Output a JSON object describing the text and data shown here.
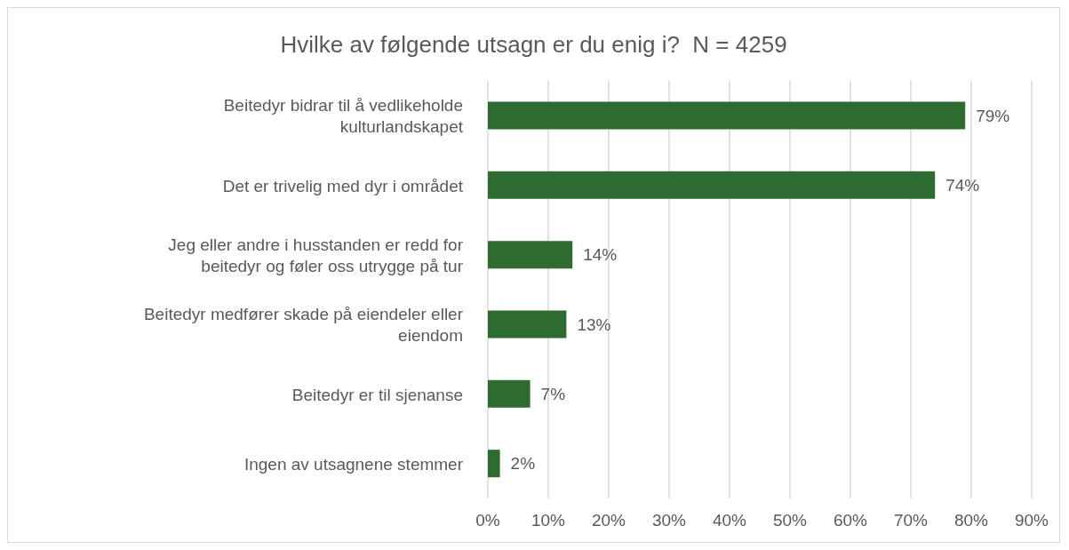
{
  "chart_data": {
    "type": "bar",
    "orientation": "horizontal",
    "title": "Hvilke av følgende utsagn er du enig i?  N = 4259",
    "categories": [
      "Beitedyr bidrar til å vedlikeholde kulturlandskapet",
      "Det er trivelig med dyr i området",
      "Jeg eller andre i husstanden er redd for beitedyr og føler oss utrygge på tur",
      "Beitedyr medfører skade på eiendeler eller eiendom",
      "Beitedyr er til sjenanse",
      "Ingen av utsagnene stemmer"
    ],
    "values": [
      79,
      74,
      14,
      13,
      7,
      2
    ],
    "value_labels": [
      "79%",
      "74%",
      "14%",
      "13%",
      "7%",
      "2%"
    ],
    "color": "#2e6b30",
    "xlim": [
      0,
      90
    ],
    "xticks": [
      {
        "value": 0,
        "label": "0%"
      },
      {
        "value": 10,
        "label": "10%"
      },
      {
        "value": 20,
        "label": "20%"
      },
      {
        "value": 30,
        "label": "30%"
      },
      {
        "value": 40,
        "label": "40%"
      },
      {
        "value": 50,
        "label": "50%"
      },
      {
        "value": 60,
        "label": "60%"
      },
      {
        "value": 70,
        "label": "70%"
      },
      {
        "value": 80,
        "label": "80%"
      },
      {
        "value": 90,
        "label": "90%"
      }
    ],
    "grid": "x"
  }
}
